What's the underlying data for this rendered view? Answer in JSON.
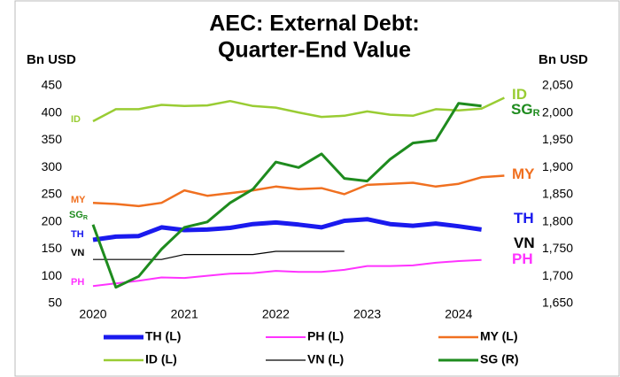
{
  "chart_data": {
    "type": "line",
    "title": [
      "AEC: External Debt:",
      "Quarter-End Value"
    ],
    "ylabel": "Bn USD",
    "y2label": "Bn USD",
    "categories": [
      "2020",
      null,
      null,
      null,
      "2021",
      null,
      null,
      null,
      "2022",
      null,
      null,
      null,
      "2023",
      null,
      null,
      null,
      "2024",
      null,
      null,
      null
    ],
    "ylim": [
      50,
      450
    ],
    "yticks": [
      50,
      100,
      150,
      200,
      250,
      300,
      350,
      400,
      450
    ],
    "y2lim": [
      1650,
      2050
    ],
    "y2ticks": [
      {
        "value": 1650,
        "label": "1,650"
      },
      {
        "value": 1700,
        "label": "1,700"
      },
      {
        "value": 1750,
        "label": "1,750"
      },
      {
        "value": 1800,
        "label": "1,800"
      },
      {
        "value": 1850,
        "label": "1,850"
      },
      {
        "value": 1900,
        "label": "1,900"
      },
      {
        "value": 1950,
        "label": "1,950"
      },
      {
        "value": 2000,
        "label": "2,000"
      },
      {
        "value": 2050,
        "label": "2,050"
      }
    ],
    "series": [
      {
        "name": "TH (L)",
        "label": "TH",
        "color": "#1a1aee",
        "width": 5,
        "values": [
          167,
          173,
          174,
          190,
          185,
          186,
          189,
          196,
          199,
          195,
          190,
          202,
          205,
          196,
          193,
          197,
          192,
          186,
          null,
          null
        ]
      },
      {
        "name": "PH (L)",
        "label": "PH",
        "color": "#ff33ff",
        "width": 2,
        "values": [
          82,
          87,
          92,
          98,
          97,
          101,
          105,
          106,
          110,
          108,
          108,
          112,
          119,
          119,
          120,
          125,
          128,
          130,
          null,
          null
        ]
      },
      {
        "name": "MY (L)",
        "label": "MY",
        "color": "#f07020",
        "width": 2.5,
        "values": [
          235,
          233,
          229,
          235,
          258,
          248,
          253,
          258,
          265,
          260,
          262,
          251,
          268,
          270,
          272,
          265,
          270,
          282,
          285,
          null
        ]
      },
      {
        "name": "ID (L)",
        "label": "ID",
        "color": "#99cc33",
        "width": 2.5,
        "values": [
          385,
          407,
          407,
          415,
          413,
          414,
          422,
          413,
          410,
          401,
          393,
          395,
          403,
          397,
          395,
          407,
          405,
          408,
          428,
          null
        ]
      },
      {
        "name": "VN (L)",
        "label": "VN",
        "color": "#000000",
        "width": 1.2,
        "values": [
          131,
          131,
          131,
          131,
          140,
          140,
          140,
          140,
          146,
          146,
          146,
          146,
          null,
          null,
          null,
          null,
          null,
          null,
          null,
          null
        ]
      },
      {
        "name": "SG (R)",
        "label": "SG",
        "sub": "R",
        "color": "#1e8b1e",
        "width": 3,
        "axis": "y2",
        "values": [
          1795,
          1680,
          1700,
          1750,
          1790,
          1800,
          1835,
          1860,
          1910,
          1900,
          1925,
          1880,
          1875,
          1915,
          1945,
          1950,
          2018,
          2013,
          null,
          null
        ]
      }
    ]
  }
}
